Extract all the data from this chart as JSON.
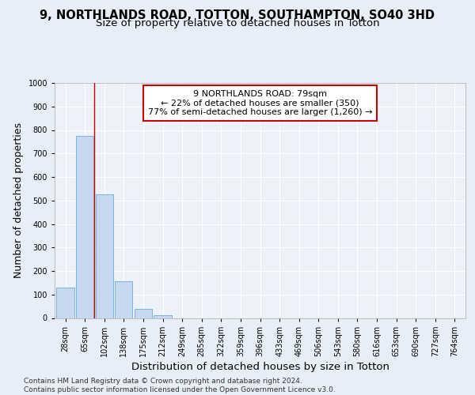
{
  "title_line1": "9, NORTHLANDS ROAD, TOTTON, SOUTHAMPTON, SO40 3HD",
  "title_line2": "Size of property relative to detached houses in Totton",
  "xlabel": "Distribution of detached houses by size in Totton",
  "ylabel": "Number of detached properties",
  "bar_categories": [
    "28sqm",
    "65sqm",
    "102sqm",
    "138sqm",
    "175sqm",
    "212sqm",
    "249sqm",
    "285sqm",
    "322sqm",
    "359sqm",
    "396sqm",
    "433sqm",
    "469sqm",
    "506sqm",
    "543sqm",
    "580sqm",
    "616sqm",
    "653sqm",
    "690sqm",
    "727sqm",
    "764sqm"
  ],
  "bar_values": [
    130,
    775,
    525,
    155,
    40,
    12,
    0,
    0,
    0,
    0,
    0,
    0,
    0,
    0,
    0,
    0,
    0,
    0,
    0,
    0,
    0
  ],
  "bar_color": "#c5d8f0",
  "bar_edge_color": "#6baed6",
  "vline_x": 1.5,
  "vline_color": "#cc0000",
  "annotation_text": "9 NORTHLANDS ROAD: 79sqm\n← 22% of detached houses are smaller (350)\n77% of semi-detached houses are larger (1,260) →",
  "annotation_box_color": "white",
  "annotation_box_edge_color": "#cc0000",
  "ylim": [
    0,
    1000
  ],
  "yticks": [
    0,
    100,
    200,
    300,
    400,
    500,
    600,
    700,
    800,
    900,
    1000
  ],
  "footnote": "Contains HM Land Registry data © Crown copyright and database right 2024.\nContains public sector information licensed under the Open Government Licence v3.0.",
  "bg_color": "#e8eef8",
  "plot_bg_color": "#edf2fa",
  "grid_color": "#ffffff",
  "title1_fontsize": 10.5,
  "title2_fontsize": 9.5,
  "axis_label_fontsize": 9,
  "tick_fontsize": 7,
  "annotation_fontsize": 8,
  "footnote_fontsize": 6.5
}
